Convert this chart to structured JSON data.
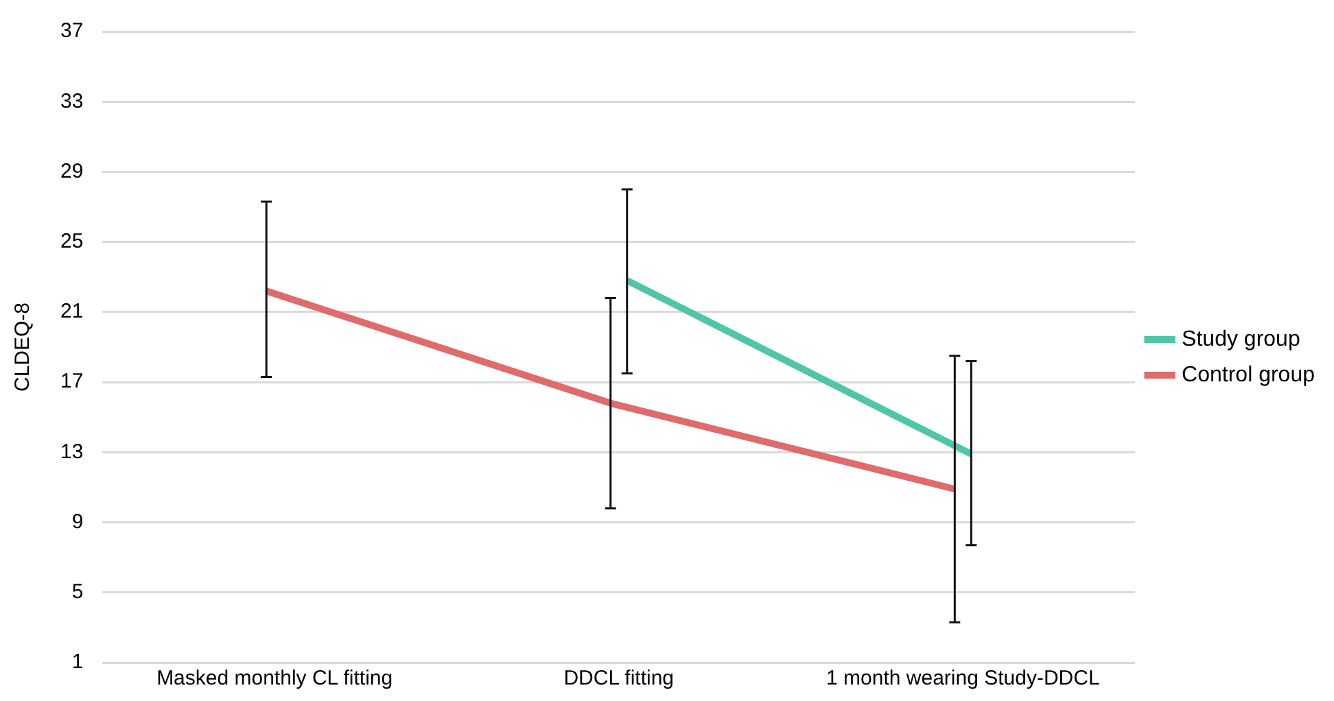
{
  "chart_data": {
    "type": "line",
    "ylabel": "CLDEQ-8",
    "categories": [
      "Masked monthly CL fitting",
      "DDCL fitting",
      "1 month wearing Study-DDCL"
    ],
    "series": [
      {
        "name": "Study group",
        "color": "#4fc6a8",
        "values": [
          null,
          22.8,
          12.9
        ],
        "errors": [
          null,
          [
            17.5,
            28.0
          ],
          [
            7.7,
            18.2
          ]
        ]
      },
      {
        "name": "Control group",
        "color": "#e06b6b",
        "values": [
          22.2,
          15.8,
          10.9
        ],
        "errors": [
          [
            17.3,
            27.3
          ],
          [
            9.8,
            21.8
          ],
          [
            3.3,
            18.5
          ]
        ]
      }
    ],
    "ylim": [
      1,
      37
    ],
    "yticks": [
      1,
      5,
      9,
      13,
      17,
      21,
      25,
      29,
      33,
      37
    ],
    "grid": "y",
    "legend": "right",
    "marker": "none",
    "line_style": "solid"
  }
}
